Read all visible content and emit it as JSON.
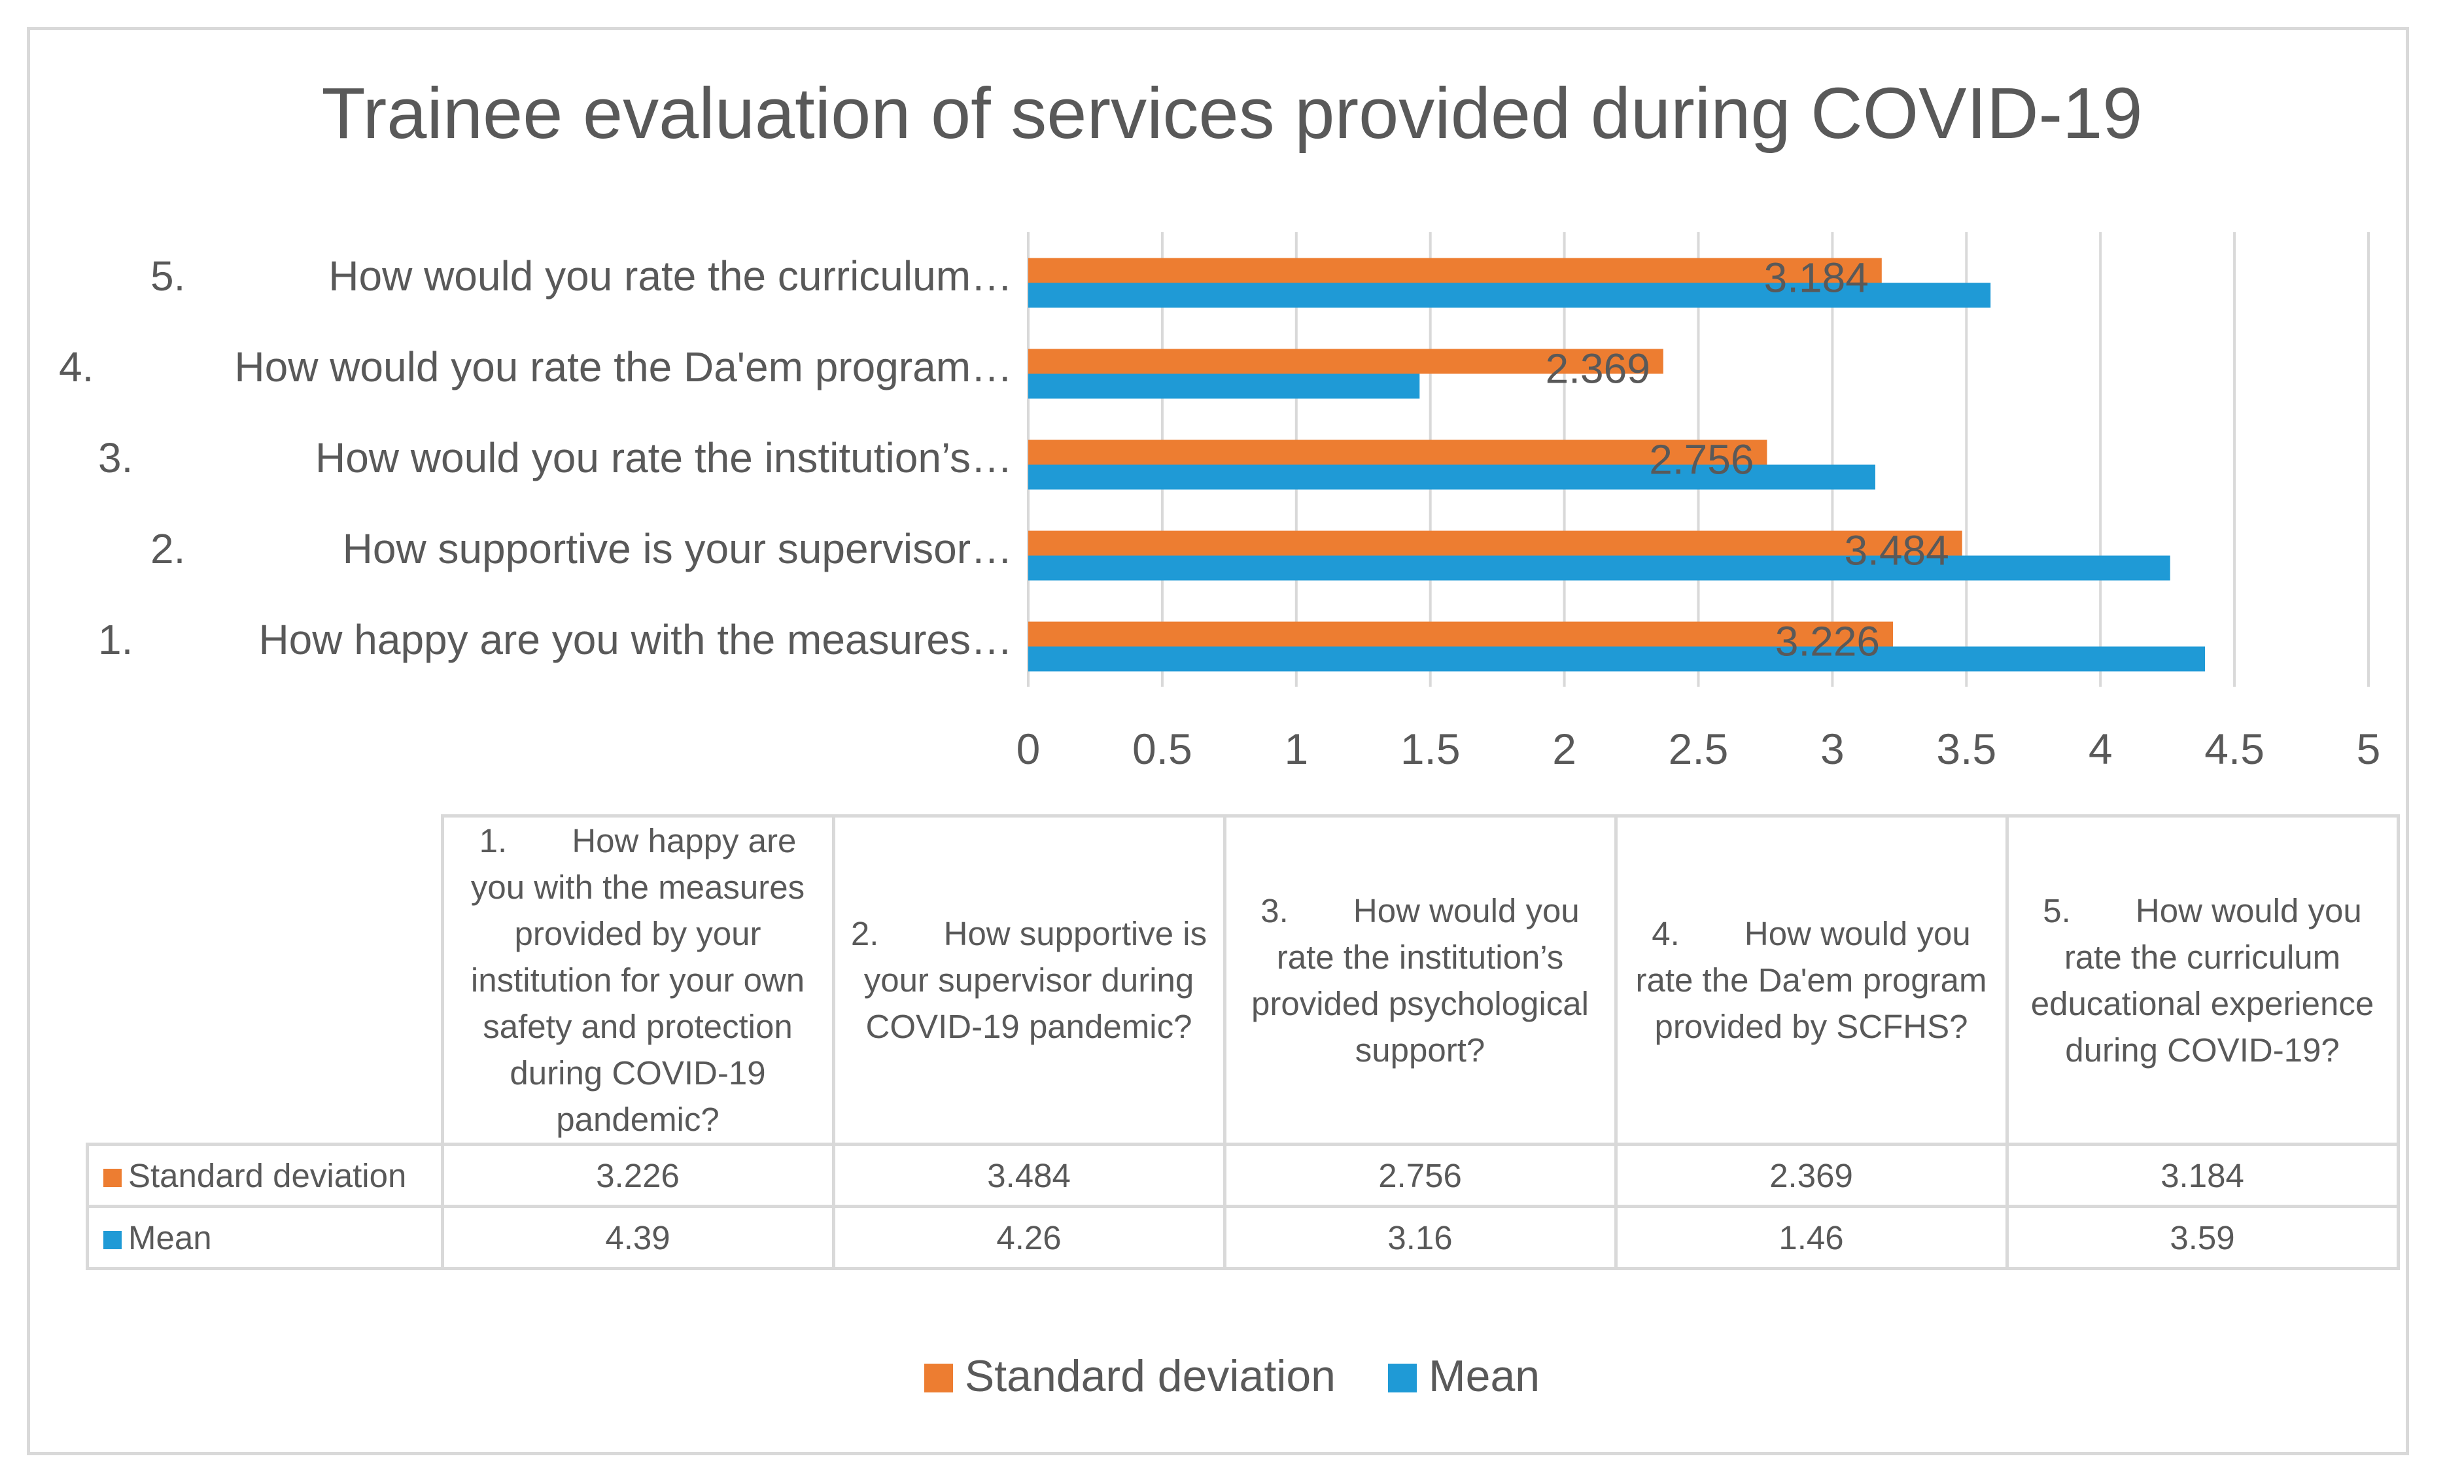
{
  "chart_data": {
    "type": "bar",
    "orientation": "horizontal",
    "title": "Trainee evaluation of services provided during COVID-19",
    "categories": [
      {
        "num": "1.",
        "label": "How happy are you with the measures…",
        "full_label": "How happy are you with the measures provided by your institution for your own safety and protection during COVID-19 pandemic?"
      },
      {
        "num": "2.",
        "label": "How supportive is your supervisor…",
        "full_label": "How supportive is your supervisor during COVID-19 pandemic?"
      },
      {
        "num": "3.",
        "label": "How would you rate the institution’s…",
        "full_label": "How would you rate the institution’s provided psychological support?"
      },
      {
        "num": "4.",
        "label": "How would you rate the Da'em program…",
        "full_label": "How would you rate the Da'em program provided by SCFHS?"
      },
      {
        "num": "5.",
        "label": "How would you rate the curriculum…",
        "full_label": "How would you rate the curriculum educational experience during COVID-19?"
      }
    ],
    "series": [
      {
        "name": "Standard deviation",
        "color": "#ED7D31",
        "values": [
          3.226,
          3.484,
          2.756,
          2.369,
          3.184
        ],
        "labels": [
          "3.226",
          "3.484",
          "2.756",
          "2.369",
          "3.184"
        ]
      },
      {
        "name": "Mean",
        "color": "#1F9AD6",
        "values": [
          4.39,
          4.26,
          3.16,
          1.46,
          3.59
        ],
        "labels": [
          "4.39",
          "4.26",
          "3.16",
          "1.46",
          "3.59"
        ]
      }
    ],
    "xlim": [
      0,
      5
    ],
    "xticks": [
      "0",
      "0.5",
      "1",
      "1.5",
      "2",
      "2.5",
      "3",
      "3.5",
      "4",
      "4.5",
      "5"
    ],
    "grid": true,
    "data_labels_series": "Standard deviation",
    "legend_position": "bottom",
    "data_table": true
  }
}
